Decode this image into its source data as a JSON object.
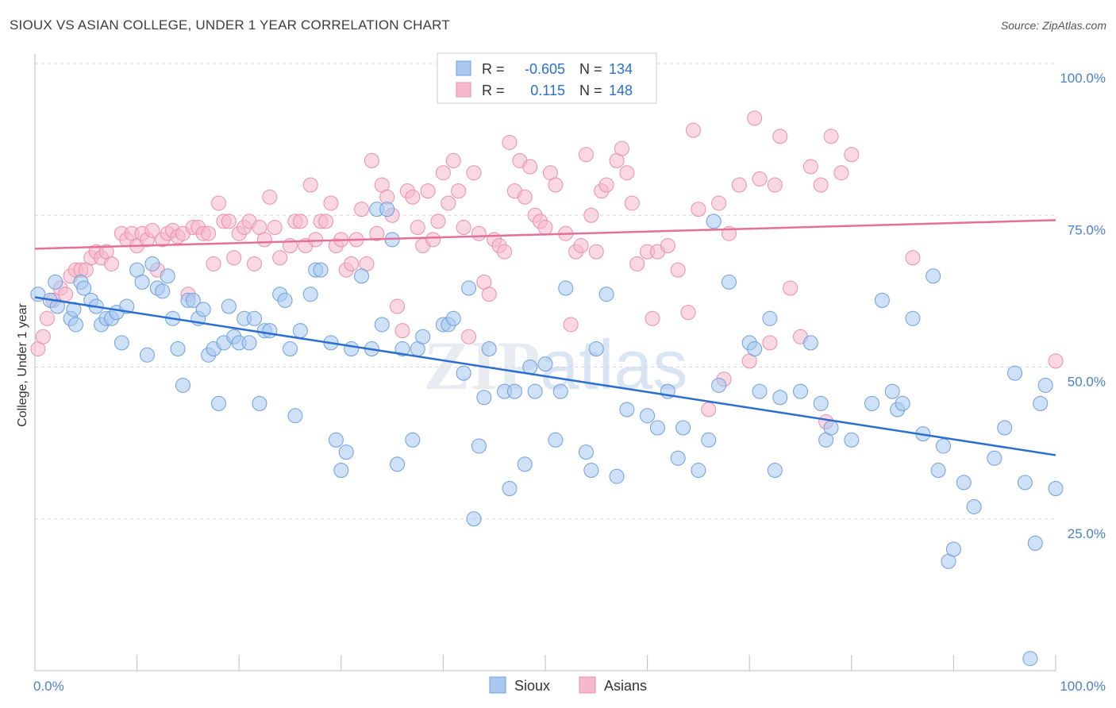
{
  "title": "SIOUX VS ASIAN COLLEGE, UNDER 1 YEAR CORRELATION CHART",
  "source": "Source: ZipAtlas.com",
  "watermark": "ZIPatlas",
  "colors": {
    "sioux_fill": "#a8c8f0",
    "sioux_stroke": "#6f9fdd",
    "sioux_line": "#2a6fd0",
    "asians_fill": "#f6b8cb",
    "asians_stroke": "#ea8fac",
    "asians_line": "#e46f97",
    "value_blue": "#2a6fd0",
    "grid": "#d8d8d8"
  },
  "legend": {
    "rows": [
      {
        "r_label": "R =",
        "r_value": "-0.605",
        "n_label": "N =",
        "n_value": "134"
      },
      {
        "r_label": "R =",
        "r_value": "0.115",
        "n_label": "N =",
        "n_value": "148"
      }
    ]
  },
  "bottom_legend": [
    "Sioux",
    "Asians"
  ],
  "chart_data": {
    "type": "scatter",
    "ylabel": "College, Under 1 year",
    "xlim": [
      0,
      100
    ],
    "ylim": [
      0,
      100
    ],
    "x_tick_labels": {
      "left": "0.0%",
      "right": "100.0%"
    },
    "y_tick_labels": [
      {
        "value": 100,
        "label": "100.0%"
      },
      {
        "value": 75,
        "label": "75.0%"
      },
      {
        "value": 50,
        "label": "50.0%"
      },
      {
        "value": 25,
        "label": "25.0%"
      }
    ],
    "grid": true,
    "legend_position": "top-center",
    "series": [
      {
        "name": "Sioux",
        "r": -0.605,
        "n": 134,
        "trend": {
          "x": [
            0,
            100
          ],
          "y": [
            61.5,
            35.5
          ]
        },
        "points": [
          [
            0.3,
            62
          ],
          [
            1.5,
            61
          ],
          [
            2,
            64
          ],
          [
            2.2,
            60
          ],
          [
            3.5,
            58
          ],
          [
            3.8,
            59.5
          ],
          [
            4,
            57
          ],
          [
            4.5,
            64
          ],
          [
            4.8,
            63
          ],
          [
            5.5,
            61
          ],
          [
            6,
            60
          ],
          [
            6.5,
            57
          ],
          [
            7,
            58
          ],
          [
            7.5,
            58
          ],
          [
            8,
            59
          ],
          [
            8.5,
            54
          ],
          [
            9,
            60
          ],
          [
            10,
            66
          ],
          [
            10.5,
            64
          ],
          [
            11,
            52
          ],
          [
            11.5,
            67
          ],
          [
            12,
            63
          ],
          [
            12.5,
            62.5
          ],
          [
            13,
            65
          ],
          [
            13.5,
            58
          ],
          [
            14,
            53
          ],
          [
            14.5,
            47
          ],
          [
            15,
            61
          ],
          [
            15.5,
            61
          ],
          [
            16,
            58
          ],
          [
            16.5,
            59.5
          ],
          [
            17,
            52
          ],
          [
            17.5,
            53
          ],
          [
            18,
            44
          ],
          [
            18.5,
            54
          ],
          [
            19,
            60
          ],
          [
            19.5,
            55
          ],
          [
            20,
            54
          ],
          [
            20.5,
            58
          ],
          [
            21,
            54
          ],
          [
            21.5,
            58
          ],
          [
            22,
            44
          ],
          [
            22.5,
            56
          ],
          [
            23,
            56
          ],
          [
            24,
            62
          ],
          [
            24.5,
            61
          ],
          [
            25,
            53
          ],
          [
            25.5,
            42
          ],
          [
            26,
            56
          ],
          [
            27,
            62
          ],
          [
            27.5,
            66
          ],
          [
            28,
            66
          ],
          [
            29,
            54
          ],
          [
            29.5,
            38
          ],
          [
            30,
            33
          ],
          [
            30.5,
            36
          ],
          [
            31,
            53
          ],
          [
            32,
            65
          ],
          [
            33,
            53
          ],
          [
            33.5,
            76
          ],
          [
            34,
            57
          ],
          [
            34.5,
            76
          ],
          [
            35,
            71
          ],
          [
            35.5,
            34
          ],
          [
            36,
            53
          ],
          [
            37,
            38
          ],
          [
            37.5,
            53
          ],
          [
            38,
            55
          ],
          [
            40,
            57
          ],
          [
            40.5,
            57
          ],
          [
            41,
            58
          ],
          [
            42,
            49
          ],
          [
            42.5,
            63
          ],
          [
            43,
            25
          ],
          [
            43.5,
            37
          ],
          [
            44,
            45
          ],
          [
            44.5,
            53
          ],
          [
            46,
            46
          ],
          [
            46.5,
            30
          ],
          [
            47,
            46
          ],
          [
            48,
            34
          ],
          [
            48.5,
            50
          ],
          [
            49,
            46
          ],
          [
            50,
            50.5
          ],
          [
            51,
            38
          ],
          [
            51.5,
            46
          ],
          [
            52,
            63
          ],
          [
            54,
            36
          ],
          [
            54.5,
            33
          ],
          [
            55,
            53
          ],
          [
            56,
            62
          ],
          [
            57,
            32
          ],
          [
            58,
            43
          ],
          [
            60,
            42
          ],
          [
            61,
            40
          ],
          [
            62,
            46
          ],
          [
            63,
            35
          ],
          [
            63.5,
            40
          ],
          [
            65,
            33
          ],
          [
            66,
            38
          ],
          [
            66.5,
            74
          ],
          [
            67,
            47
          ],
          [
            68,
            64
          ],
          [
            70,
            54
          ],
          [
            70.5,
            53
          ],
          [
            71,
            46
          ],
          [
            72,
            58
          ],
          [
            72.5,
            33
          ],
          [
            73,
            45
          ],
          [
            75,
            46
          ],
          [
            76,
            54
          ],
          [
            77,
            44
          ],
          [
            77.5,
            38
          ],
          [
            78,
            40
          ],
          [
            80,
            38
          ],
          [
            82,
            44
          ],
          [
            83,
            61
          ],
          [
            84,
            46
          ],
          [
            84.5,
            43
          ],
          [
            85,
            44
          ],
          [
            86,
            58
          ],
          [
            87,
            39
          ],
          [
            88,
            65
          ],
          [
            88.5,
            33
          ],
          [
            89,
            37
          ],
          [
            89.5,
            18
          ],
          [
            90,
            20
          ],
          [
            91,
            31
          ],
          [
            92,
            27
          ],
          [
            94,
            35
          ],
          [
            95,
            40
          ],
          [
            96,
            49
          ],
          [
            97,
            31
          ],
          [
            98,
            21
          ],
          [
            98.5,
            44
          ],
          [
            99,
            47
          ],
          [
            100,
            30
          ],
          [
            97.5,
            2
          ]
        ]
      },
      {
        "name": "Asians",
        "r": 0.115,
        "n": 148,
        "trend": {
          "x": [
            0,
            100
          ],
          "y": [
            69.5,
            74.2
          ]
        },
        "points": [
          [
            0.3,
            53
          ],
          [
            0.8,
            55
          ],
          [
            1.2,
            58
          ],
          [
            1.8,
            61
          ],
          [
            2.5,
            63
          ],
          [
            3,
            62
          ],
          [
            3.5,
            65
          ],
          [
            4,
            66
          ],
          [
            4.5,
            66
          ],
          [
            5,
            66
          ],
          [
            5.5,
            68
          ],
          [
            6,
            69
          ],
          [
            6.5,
            68
          ],
          [
            7,
            69
          ],
          [
            7.5,
            67
          ],
          [
            8.5,
            72
          ],
          [
            9,
            71
          ],
          [
            9.5,
            72
          ],
          [
            10,
            70
          ],
          [
            10.5,
            72
          ],
          [
            11,
            71
          ],
          [
            11.5,
            72.5
          ],
          [
            12,
            66
          ],
          [
            12.5,
            71
          ],
          [
            13,
            72
          ],
          [
            13.5,
            72.5
          ],
          [
            14,
            71.5
          ],
          [
            14.5,
            72
          ],
          [
            15,
            62
          ],
          [
            15.5,
            73
          ],
          [
            16,
            73
          ],
          [
            16.5,
            72
          ],
          [
            17,
            72
          ],
          [
            17.5,
            67
          ],
          [
            18,
            77
          ],
          [
            18.5,
            74
          ],
          [
            19,
            74
          ],
          [
            19.5,
            68
          ],
          [
            20,
            72
          ],
          [
            20.5,
            73
          ],
          [
            21,
            74
          ],
          [
            21.5,
            67
          ],
          [
            22,
            73
          ],
          [
            22.5,
            71
          ],
          [
            23,
            78
          ],
          [
            23.5,
            73
          ],
          [
            24,
            68
          ],
          [
            25,
            70
          ],
          [
            25.5,
            74
          ],
          [
            26,
            74
          ],
          [
            26.5,
            70
          ],
          [
            27,
            80
          ],
          [
            27.5,
            71
          ],
          [
            28,
            74
          ],
          [
            28.5,
            74
          ],
          [
            29,
            77
          ],
          [
            29.5,
            70
          ],
          [
            30,
            71
          ],
          [
            30.5,
            66
          ],
          [
            31,
            67
          ],
          [
            31.5,
            71
          ],
          [
            32,
            76
          ],
          [
            32.5,
            67
          ],
          [
            33,
            84
          ],
          [
            33.5,
            72
          ],
          [
            34,
            80
          ],
          [
            34.5,
            78
          ],
          [
            35,
            75
          ],
          [
            35.5,
            60
          ],
          [
            36,
            56
          ],
          [
            36.5,
            79
          ],
          [
            37,
            78
          ],
          [
            37.5,
            73
          ],
          [
            38,
            70
          ],
          [
            38.5,
            79
          ],
          [
            39,
            71
          ],
          [
            39.5,
            74
          ],
          [
            40,
            82
          ],
          [
            40.5,
            77
          ],
          [
            41,
            84
          ],
          [
            41.5,
            79
          ],
          [
            42,
            73
          ],
          [
            42.5,
            55
          ],
          [
            43,
            82
          ],
          [
            43.5,
            72
          ],
          [
            44,
            64
          ],
          [
            44.5,
            62
          ],
          [
            45,
            71
          ],
          [
            45.5,
            70
          ],
          [
            46,
            69
          ],
          [
            46.5,
            87
          ],
          [
            47,
            79
          ],
          [
            47.5,
            84
          ],
          [
            48,
            78
          ],
          [
            48.5,
            83
          ],
          [
            49,
            75
          ],
          [
            49.5,
            74
          ],
          [
            50,
            73
          ],
          [
            50.5,
            82
          ],
          [
            51,
            80
          ],
          [
            52,
            72
          ],
          [
            52.5,
            57
          ],
          [
            53,
            69
          ],
          [
            53.5,
            70
          ],
          [
            54,
            85
          ],
          [
            54.5,
            75
          ],
          [
            55,
            69
          ],
          [
            55.5,
            79
          ],
          [
            56,
            80
          ],
          [
            57,
            84
          ],
          [
            57.5,
            86
          ],
          [
            58,
            82
          ],
          [
            58.5,
            77
          ],
          [
            59,
            67
          ],
          [
            60,
            69
          ],
          [
            60.5,
            58
          ],
          [
            61,
            69
          ],
          [
            62,
            70
          ],
          [
            63,
            66
          ],
          [
            64,
            59
          ],
          [
            64.5,
            89
          ],
          [
            65,
            76
          ],
          [
            66,
            43
          ],
          [
            67,
            77
          ],
          [
            67.5,
            48
          ],
          [
            68,
            72
          ],
          [
            69,
            80
          ],
          [
            70,
            51
          ],
          [
            70.5,
            91
          ],
          [
            71,
            81
          ],
          [
            72,
            54
          ],
          [
            72.5,
            80
          ],
          [
            73,
            88
          ],
          [
            74,
            63
          ],
          [
            75,
            55
          ],
          [
            76,
            83
          ],
          [
            77,
            80
          ],
          [
            77.5,
            41
          ],
          [
            78,
            88
          ],
          [
            79,
            82
          ],
          [
            80,
            85
          ],
          [
            86,
            68
          ],
          [
            100,
            51
          ]
        ]
      }
    ]
  }
}
